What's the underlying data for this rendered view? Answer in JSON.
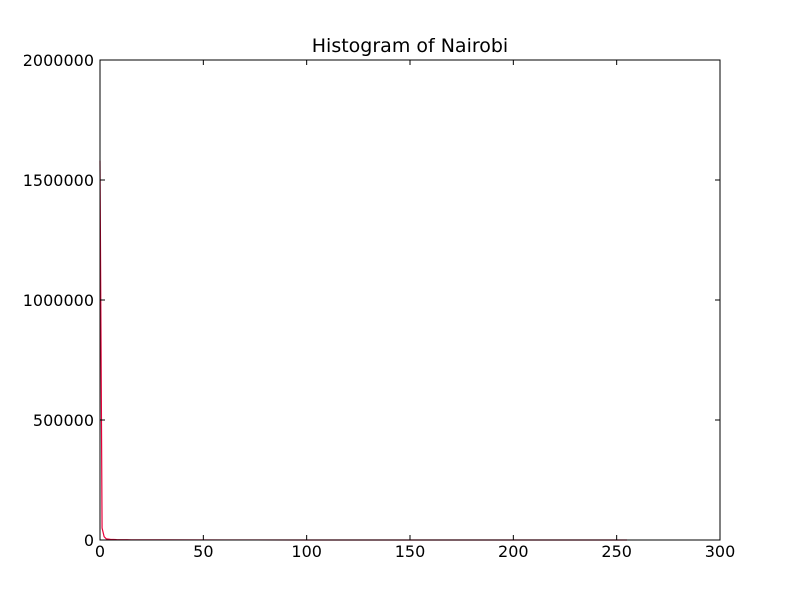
{
  "chart_data": {
    "type": "line",
    "title": "Histogram of Nairobi",
    "xlabel": "",
    "ylabel": "",
    "xlim": [
      0,
      300
    ],
    "ylim": [
      0,
      2000000
    ],
    "x_ticks": [
      0,
      50,
      100,
      150,
      200,
      250,
      300
    ],
    "y_ticks": [
      0,
      500000,
      1000000,
      1500000,
      2000000
    ],
    "x_tick_labels": [
      "0",
      "50",
      "100",
      "150",
      "200",
      "250",
      "300"
    ],
    "y_tick_labels": [
      "0",
      "500000",
      "1000000",
      "1500000",
      "2000000"
    ],
    "grid": false,
    "legend": "none",
    "series": [
      {
        "color": "#e8003a",
        "x": [
          0,
          1,
          2,
          3,
          5,
          8,
          15,
          30,
          60,
          100,
          150,
          200,
          250,
          255
        ],
        "y": [
          1580000,
          50000,
          14000,
          5000,
          2500,
          1500,
          800,
          400,
          200,
          100,
          60,
          40,
          20,
          10
        ]
      }
    ]
  }
}
